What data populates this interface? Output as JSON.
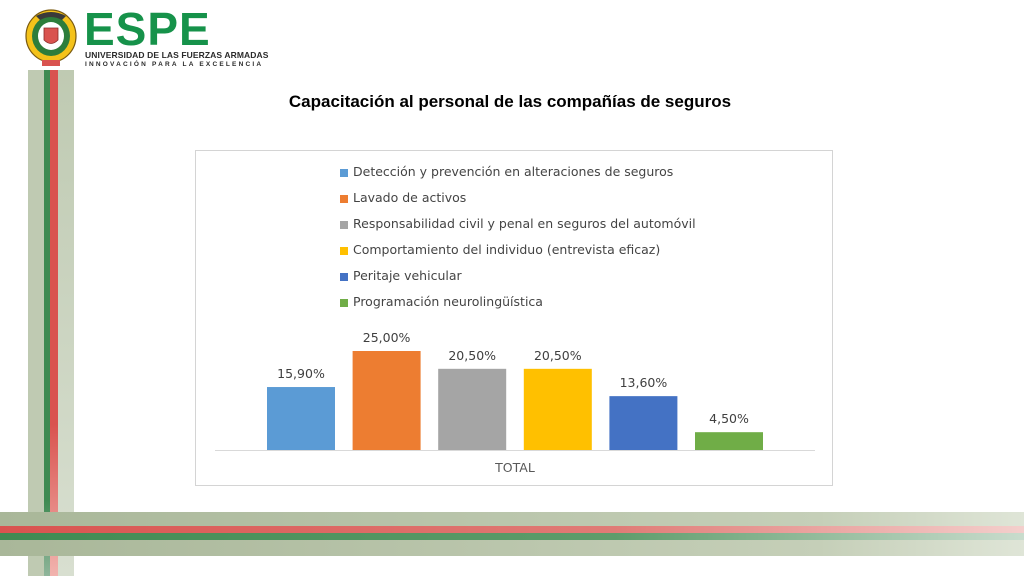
{
  "header": {
    "brand": "ESPE",
    "university": "UNIVERSIDAD DE LAS FUERZAS ARMADAS",
    "motto": "INNOVACIÓN PARA LA EXCELENCIA"
  },
  "page_title": "Capacitación al personal de las compañías de seguros",
  "colors": {
    "brand_green": "#16924a",
    "stripe_red": "#d9534f",
    "stripe_green": "#3f8a52",
    "stripe_olive": "#a9b799"
  },
  "chart_data": {
    "type": "bar",
    "categories": [
      "TOTAL"
    ],
    "series": [
      {
        "name": "Detección y prevención en alteraciones de seguros",
        "values": [
          15.9
        ],
        "label": "15,90%",
        "color": "#5b9bd5"
      },
      {
        "name": "Lavado de activos",
        "values": [
          25.0
        ],
        "label": "25,00%",
        "color": "#ed7d31"
      },
      {
        "name": "Responsabilidad civil y penal en seguros del automóvil",
        "values": [
          20.5
        ],
        "label": "20,50%",
        "color": "#a5a5a5"
      },
      {
        "name": "Comportamiento del individuo (entrevista eficaz)",
        "values": [
          20.5
        ],
        "label": "20,50%",
        "color": "#ffc000"
      },
      {
        "name": "Peritaje vehicular",
        "values": [
          13.6
        ],
        "label": "13,60%",
        "color": "#4472c4"
      },
      {
        "name": "Programación neurolingüística",
        "values": [
          4.5
        ],
        "label": "4,50%",
        "color": "#70ad47"
      }
    ],
    "xlabel": "",
    "ylabel": "",
    "ylim": [
      0,
      25
    ],
    "grid": false,
    "legend": "top"
  }
}
